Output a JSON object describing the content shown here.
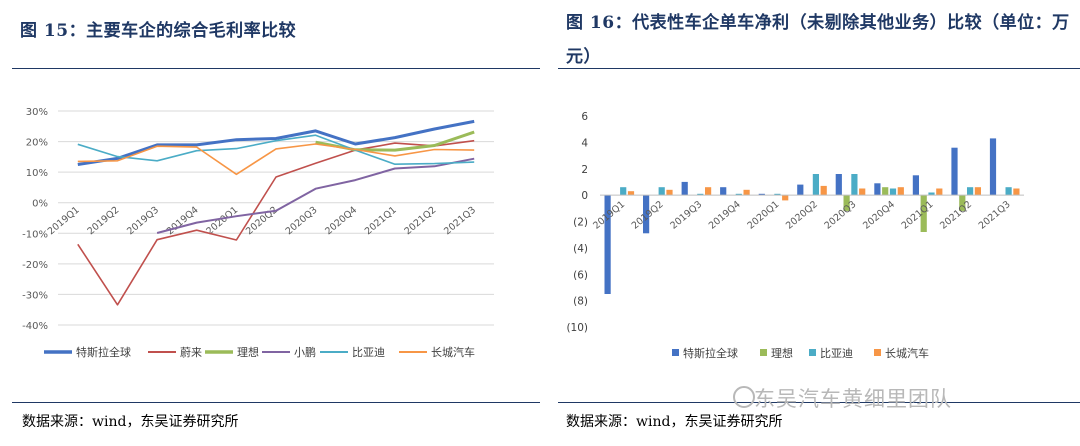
{
  "left": {
    "title": "图 15：主要车企的综合毛利率比较",
    "source": "数据来源：wind，东吴证券研究所"
  },
  "right": {
    "title": "图 16：代表性车企单车净利（未剔除其他业务）比较（单位：万元）",
    "source": "数据来源：wind，东吴证券研究所"
  },
  "watermark": "东吴汽车黄细里团队",
  "chart_data": [
    {
      "type": "line",
      "categories": [
        "2019Q1",
        "2019Q2",
        "2019Q3",
        "2019Q4",
        "2020Q1",
        "2020Q2",
        "2020Q3",
        "2020Q4",
        "2021Q1",
        "2021Q2",
        "2021Q3"
      ],
      "ylim": [
        -40,
        30
      ],
      "yticks": [
        "30%",
        "20%",
        "10%",
        "0%",
        "-10%",
        "-20%",
        "-30%",
        "-40%"
      ],
      "grid": true,
      "legend": "bottom",
      "series": [
        {
          "name": "特斯拉全球",
          "color": "#4472c4",
          "width": 3,
          "values": [
            12.5,
            14.5,
            18.9,
            18.9,
            20.6,
            21.0,
            23.5,
            19.2,
            21.3,
            24.1,
            26.6
          ]
        },
        {
          "name": "蔚来",
          "color": "#c0504d",
          "width": 1.6,
          "values": [
            -13.6,
            -33.4,
            -12.1,
            -9.0,
            -12.2,
            8.4,
            12.9,
            17.2,
            19.5,
            18.6,
            20.3
          ]
        },
        {
          "name": "理想",
          "color": "#9bbb59",
          "width": 3,
          "values": [
            null,
            null,
            null,
            null,
            null,
            null,
            19.8,
            17.3,
            17.2,
            18.7,
            23.1
          ]
        },
        {
          "name": "小鹏",
          "color": "#8064a2",
          "width": 2,
          "values": [
            null,
            null,
            -9.9,
            -6.5,
            -4.4,
            -2.6,
            4.6,
            7.4,
            11.2,
            11.9,
            14.4
          ]
        },
        {
          "name": "比亚迪",
          "color": "#4bacc6",
          "width": 1.6,
          "values": [
            19.1,
            15.1,
            13.7,
            17.0,
            17.7,
            20.3,
            22.1,
            17.2,
            12.6,
            12.8,
            13.3
          ]
        },
        {
          "name": "长城汽车",
          "color": "#f79646",
          "width": 1.6,
          "values": [
            13.5,
            13.7,
            18.5,
            18.2,
            9.3,
            17.6,
            19.2,
            17.4,
            15.3,
            17.4,
            17.2
          ]
        }
      ]
    },
    {
      "type": "bar",
      "categories": [
        "2019Q1",
        "2019Q2",
        "2019Q3",
        "2019Q4",
        "2020Q1",
        "2020Q2",
        "2020Q3",
        "2020Q4",
        "2021Q1",
        "2021Q2",
        "2021Q3"
      ],
      "ylim": [
        -10,
        6
      ],
      "yticks": [
        "6",
        "4",
        "2",
        "0",
        "(2)",
        "(4)",
        "(6)",
        "(8)",
        "(10)"
      ],
      "grid": false,
      "legend": "bottom",
      "series": [
        {
          "name": "特斯拉全球",
          "color": "#4472c4",
          "values": [
            -7.5,
            -2.9,
            1.0,
            0.6,
            0.1,
            0.8,
            1.6,
            0.9,
            1.5,
            3.6,
            4.3
          ]
        },
        {
          "name": "理想",
          "color": "#9bbb59",
          "values": [
            null,
            null,
            null,
            null,
            null,
            null,
            -1.2,
            0.6,
            -2.8,
            -1.2,
            null
          ]
        },
        {
          "name": "比亚迪",
          "color": "#4bacc6",
          "values": [
            0.6,
            0.6,
            0.1,
            0.1,
            0.1,
            1.6,
            1.6,
            0.5,
            0.2,
            0.6,
            0.6
          ]
        },
        {
          "name": "长城汽车",
          "color": "#f79646",
          "values": [
            0.3,
            0.4,
            0.6,
            0.4,
            -0.4,
            0.7,
            0.5,
            0.6,
            0.5,
            0.6,
            0.5
          ]
        }
      ]
    }
  ]
}
